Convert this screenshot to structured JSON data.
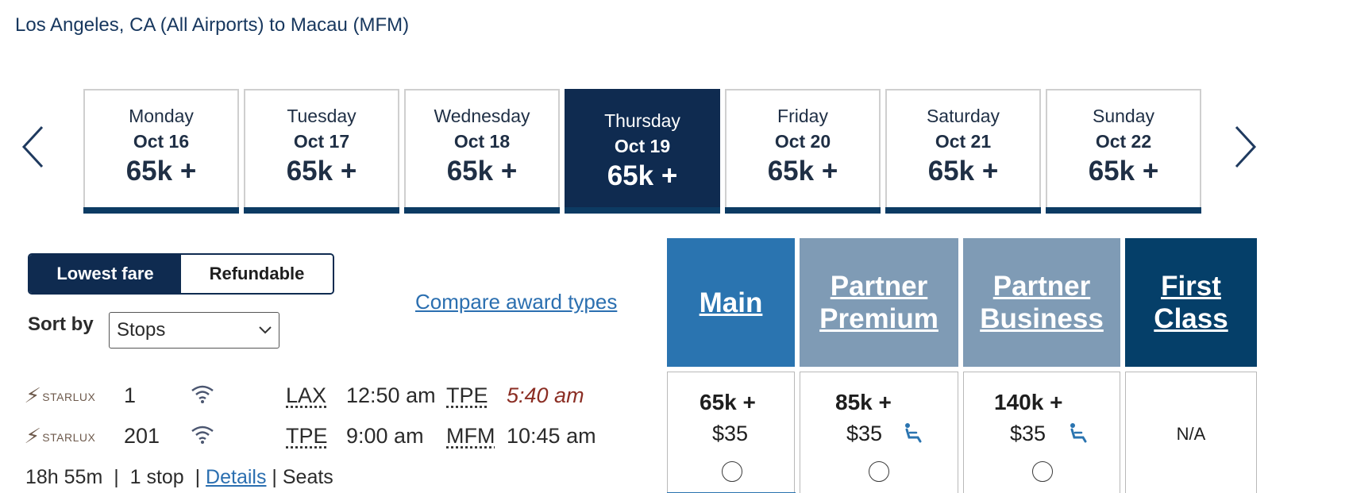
{
  "route_title": "Los Angeles, CA (All Airports) to Macau (MFM)",
  "date_strip": {
    "prev_icon": "chevron-left-icon",
    "next_icon": "chevron-right-icon",
    "days": [
      {
        "weekday": "Monday",
        "date": "Oct 16",
        "points": "65k +",
        "selected": false
      },
      {
        "weekday": "Tuesday",
        "date": "Oct 17",
        "points": "65k +",
        "selected": false
      },
      {
        "weekday": "Wednesday",
        "date": "Oct 18",
        "points": "65k +",
        "selected": false
      },
      {
        "weekday": "Thursday",
        "date": "Oct 19",
        "points": "65k +",
        "selected": true
      },
      {
        "weekday": "Friday",
        "date": "Oct 20",
        "points": "65k +",
        "selected": false
      },
      {
        "weekday": "Saturday",
        "date": "Oct 21",
        "points": "65k +",
        "selected": false
      },
      {
        "weekday": "Sunday",
        "date": "Oct 22",
        "points": "65k +",
        "selected": false
      }
    ]
  },
  "fare_toggle": {
    "active": "Lowest fare",
    "inactive": "Refundable"
  },
  "sort": {
    "label": "Sort by",
    "value": "Stops"
  },
  "compare_link": "Compare award types",
  "cabins": [
    {
      "name": "Main",
      "miles": "65k +",
      "tax": "$35",
      "seat_icon": false,
      "available": true
    },
    {
      "name": "Partner Premium",
      "miles": "85k +",
      "tax": "$35",
      "seat_icon": true,
      "available": true
    },
    {
      "name": "Partner Business",
      "miles": "140k +",
      "tax": "$35",
      "seat_icon": true,
      "available": true
    },
    {
      "name": "First Class",
      "na": "N/A",
      "available": false
    }
  ],
  "segments": [
    {
      "airline": "STARLUX",
      "flight": "1",
      "wifi_icon": "wifi-icon",
      "from": "LAX",
      "depart": "12:50 am",
      "to": "TPE",
      "arrive": "5:40 am",
      "arrive_next_day": true
    },
    {
      "airline": "STARLUX",
      "flight": "201",
      "wifi_icon": "wifi-icon",
      "from": "TPE",
      "depart": "9:00 am",
      "to": "MFM",
      "arrive": "10:45 am",
      "arrive_next_day": false
    }
  ],
  "summary": {
    "duration": "18h 55m",
    "stops": "1 stop",
    "details": "Details",
    "seats": "Seats"
  },
  "colors": {
    "navy": "#0f2b50",
    "main_blue": "#2a74b0",
    "partner": "#7f9bb5",
    "first": "#053f69",
    "late_red": "#8b2e24",
    "link": "#2b6fb0"
  }
}
